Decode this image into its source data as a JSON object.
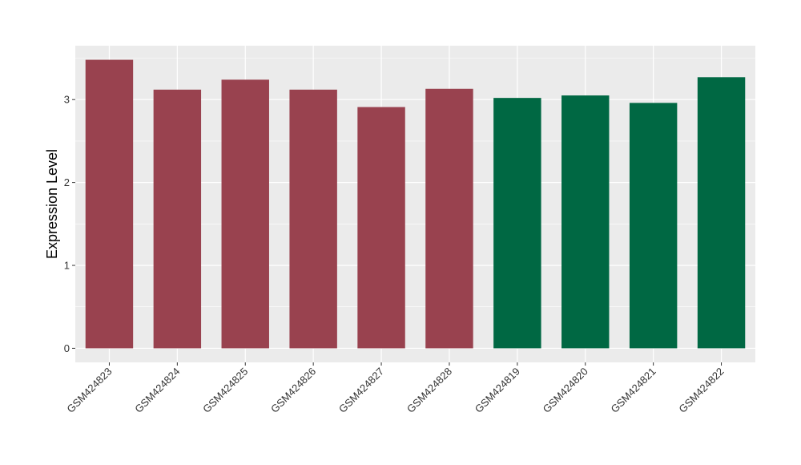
{
  "chart_data": {
    "type": "bar",
    "title": "",
    "xlabel": "",
    "ylabel": "Expression Level",
    "categories": [
      "GSM424823",
      "GSM424824",
      "GSM424825",
      "GSM424826",
      "GSM424827",
      "GSM424828",
      "GSM424819",
      "GSM424820",
      "GSM424821",
      "GSM424822"
    ],
    "values": [
      3.48,
      3.12,
      3.24,
      3.12,
      2.91,
      3.13,
      3.02,
      3.05,
      2.96,
      3.27
    ],
    "bar_colors": [
      "#99424f",
      "#99424f",
      "#99424f",
      "#99424f",
      "#99424f",
      "#99424f",
      "#006843",
      "#006843",
      "#006843",
      "#006843"
    ],
    "ylim": [
      -0.17,
      3.65
    ],
    "yticks": [
      0,
      1,
      2,
      3
    ],
    "grid": true,
    "legend": "none",
    "panel_background": "#ebebeb",
    "grid_color": "#ffffff"
  }
}
